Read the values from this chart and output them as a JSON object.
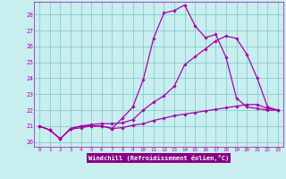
{
  "title": "",
  "xlabel": "Windchill (Refroidissement éolien,°C)",
  "xlim": [
    -0.5,
    23.5
  ],
  "ylim": [
    19.7,
    28.8
  ],
  "xticks": [
    0,
    1,
    2,
    3,
    4,
    5,
    6,
    7,
    8,
    9,
    10,
    11,
    12,
    13,
    14,
    15,
    16,
    17,
    18,
    19,
    20,
    21,
    22,
    23
  ],
  "yticks": [
    20,
    21,
    22,
    23,
    24,
    25,
    26,
    27,
    28
  ],
  "bg_color": "#c8eef0",
  "line_color": "#aa00aa",
  "grid_color": "#88cccc",
  "xlabel_bg": "#880088",
  "line1_x": [
    0,
    1,
    2,
    3,
    4,
    5,
    6,
    7,
    8,
    9,
    10,
    11,
    12,
    13,
    14,
    15,
    16,
    17,
    18,
    19,
    20,
    21,
    22,
    23
  ],
  "line1_y": [
    21.0,
    20.75,
    20.2,
    20.8,
    20.9,
    21.0,
    21.0,
    20.85,
    20.9,
    21.05,
    21.15,
    21.35,
    21.5,
    21.65,
    21.75,
    21.85,
    21.95,
    22.05,
    22.15,
    22.25,
    22.35,
    22.35,
    22.1,
    22.0
  ],
  "line2_x": [
    0,
    1,
    2,
    3,
    4,
    5,
    6,
    7,
    8,
    9,
    10,
    11,
    12,
    13,
    14,
    15,
    16,
    17,
    18,
    19,
    20,
    21,
    22,
    23
  ],
  "line2_y": [
    21.0,
    20.75,
    20.2,
    20.85,
    21.0,
    21.0,
    21.0,
    20.85,
    21.5,
    22.2,
    23.9,
    26.5,
    28.1,
    28.25,
    28.6,
    27.3,
    26.55,
    26.75,
    25.3,
    22.75,
    22.2,
    22.1,
    22.0,
    22.0
  ],
  "line3_x": [
    0,
    1,
    2,
    3,
    4,
    5,
    6,
    7,
    8,
    9,
    10,
    11,
    12,
    13,
    14,
    15,
    16,
    17,
    18,
    19,
    20,
    21,
    22,
    23
  ],
  "line3_y": [
    21.0,
    20.75,
    20.2,
    20.85,
    21.0,
    21.1,
    21.15,
    21.15,
    21.2,
    21.4,
    22.0,
    22.5,
    22.9,
    23.5,
    24.85,
    25.35,
    25.85,
    26.35,
    26.65,
    26.5,
    25.5,
    24.0,
    22.2,
    22.0
  ]
}
